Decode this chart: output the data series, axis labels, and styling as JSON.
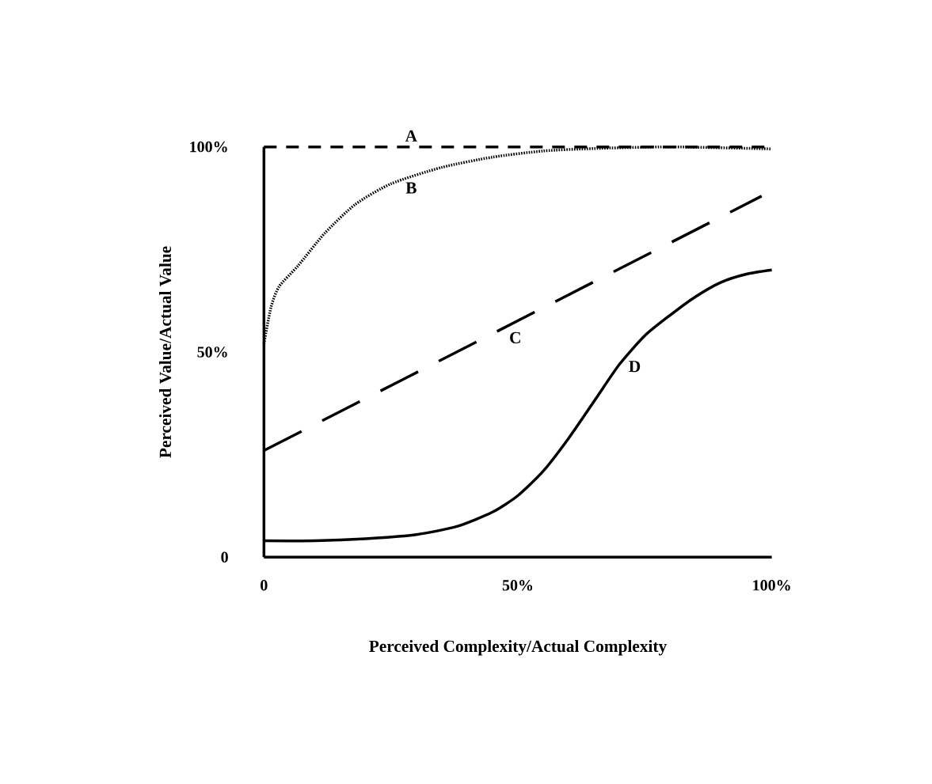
{
  "chart_data": {
    "type": "line",
    "xlabel": "Perceived Complexity/Actual Complexity",
    "ylabel": "Perceived Value/Actual Value",
    "xlim": [
      0,
      100
    ],
    "ylim": [
      0,
      100
    ],
    "xticks": [
      {
        "value": 0,
        "label": "0"
      },
      {
        "value": 50,
        "label": "50%"
      },
      {
        "value": 100,
        "label": "100%"
      }
    ],
    "yticks": [
      {
        "value": 0,
        "label": "0"
      },
      {
        "value": 50,
        "label": "50%"
      },
      {
        "value": 100,
        "label": "100%"
      }
    ],
    "grid": false,
    "marker": "none",
    "series": [
      {
        "color": "#000000",
        "line_style": "dashed",
        "x": [
          0,
          100
        ],
        "values": [
          100,
          100
        ]
      },
      {
        "color": "#000000",
        "line_style": "dotted",
        "x": [
          0,
          1.4,
          3,
          6.7,
          12,
          18,
          25,
          35,
          45,
          55,
          65,
          80,
          100
        ],
        "values": [
          52,
          61,
          66,
          71,
          79,
          86,
          91,
          95,
          97.5,
          99,
          99.6,
          100,
          99.5
        ]
      },
      {
        "color": "#000000",
        "line_style": "longdash",
        "x": [
          0,
          98
        ],
        "values": [
          26,
          88
        ]
      },
      {
        "color": "#000000",
        "line_style": "solid",
        "x": [
          0,
          10,
          20,
          30,
          38,
          45,
          50,
          55,
          60,
          65,
          70,
          75,
          80,
          85,
          90,
          95,
          100
        ],
        "values": [
          4,
          4,
          4.5,
          5.5,
          7.5,
          11,
          15,
          21,
          29,
          38,
          47,
          54,
          59,
          63.5,
          67,
          69,
          70
        ]
      }
    ],
    "annotations": [
      "A",
      "B",
      "C",
      "D"
    ]
  }
}
